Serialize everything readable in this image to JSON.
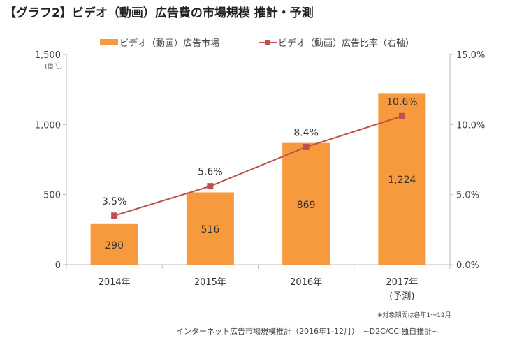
{
  "chart_data": {
    "type": "bar",
    "title": "【グラフ2】ビデオ（動画）広告費の市場規模 推計・予測",
    "categories": [
      "2014年",
      "2015年",
      "2016年",
      "2017年"
    ],
    "category_sublabels": [
      "",
      "",
      "",
      "(予測)"
    ],
    "series": [
      {
        "name": "ビデオ（動画）広告市場",
        "type": "bar",
        "axis": "left",
        "values": [
          290,
          516,
          869,
          1224
        ],
        "labels": [
          "290",
          "516",
          "869",
          "1,224"
        ],
        "color": "#f79a3e"
      },
      {
        "name": "ビデオ（動画）広告比率（右軸）",
        "type": "line",
        "axis": "right",
        "values": [
          3.5,
          5.6,
          8.4,
          10.6
        ],
        "labels": [
          "3.5%",
          "5.6%",
          "8.4%",
          "10.6%"
        ],
        "color": "#c0504d"
      }
    ],
    "ylabel": "(億円)",
    "ylim": [
      0,
      1500
    ],
    "yticks": [
      "0",
      "500",
      "1,000",
      "1,500"
    ],
    "y2lim": [
      0,
      15
    ],
    "y2ticks": [
      "0.0%",
      "5.0%",
      "10.0%",
      "15.0%"
    ],
    "grid": false,
    "legend": "top",
    "notes": [
      "※対象期間は各年1～12月",
      "インターネット広告市場規模推計（2016年1-12月）　~D2C/CCI独自推計~"
    ]
  }
}
